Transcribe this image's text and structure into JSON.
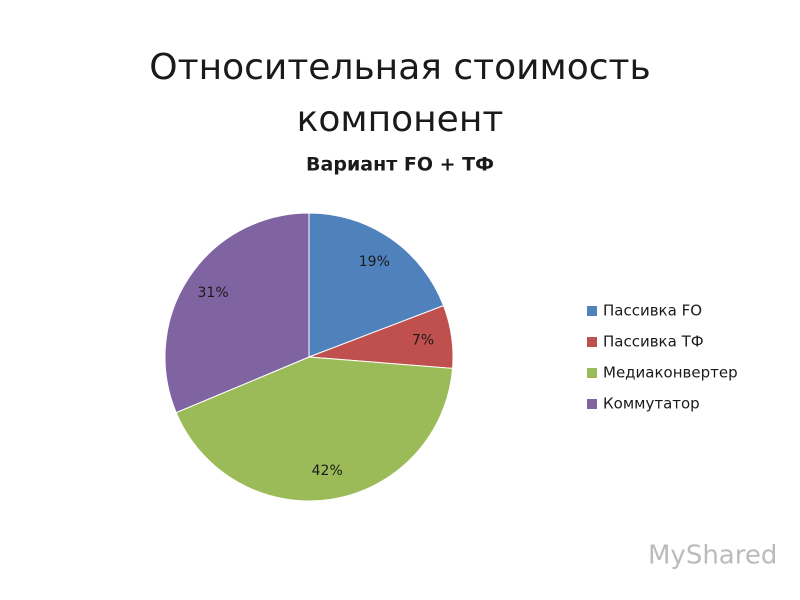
{
  "chart_data": {
    "type": "pie",
    "title": "Относительная стоимость компонент",
    "subtitle": "Вариант FO + ТФ",
    "categories": [
      "Пассивка FO",
      "Пассивка ТФ",
      "Медиаконвертер",
      "Коммутатор"
    ],
    "values": [
      19,
      7,
      42,
      31
    ],
    "value_labels": [
      "19%",
      "7%",
      "42%",
      "31%"
    ],
    "colors": [
      "#4f81bd",
      "#c0504d",
      "#9bbb59",
      "#8064a2"
    ],
    "legend": "right"
  },
  "watermark": "MyShared"
}
